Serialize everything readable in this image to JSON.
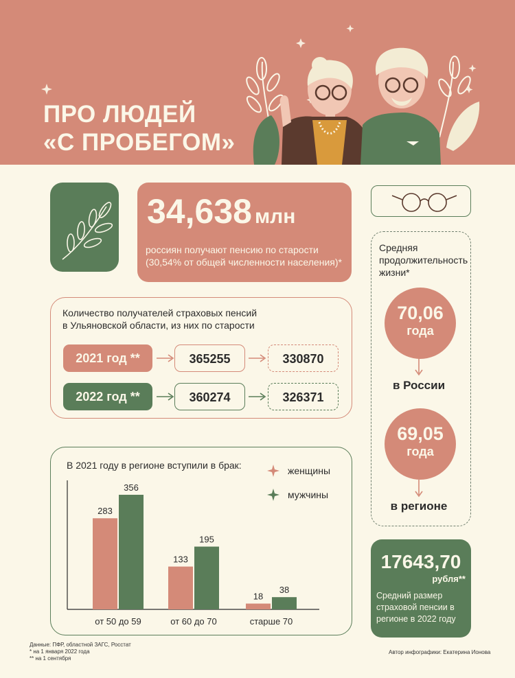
{
  "header": {
    "title_line1": "ПРО ЛЮДЕЙ",
    "title_line2": "«С ПРОБЕГОМ»"
  },
  "colors": {
    "accent_pink": "#d48a78",
    "accent_green": "#5a7d59",
    "background": "#fbf7e8"
  },
  "pensioners": {
    "value": "34,638",
    "unit": "млн",
    "caption_line1": "россиян получают пенсию по старости",
    "caption_line2": "(30,54% от общей численности населения)*"
  },
  "life_expectancy": {
    "title": "Средняя продолжительность жизни*",
    "russia": {
      "value": "70,06",
      "unit": "года",
      "label": "в России"
    },
    "region": {
      "value": "69,05",
      "unit": "года",
      "label": "в регионе"
    }
  },
  "pension": {
    "value": "17643,70",
    "unit": "рубля**",
    "caption": "Средний размер страховой пенсии в регионе в 2022 году"
  },
  "recipients": {
    "title_line1": "Количество получателей страховых пенсий",
    "title_line2": "в Ульяновской области, из них по старости",
    "rows": [
      {
        "year": "2021 год **",
        "total": "365255",
        "old_age": "330870"
      },
      {
        "year": "2022 год **",
        "total": "360274",
        "old_age": "326371"
      }
    ]
  },
  "chart_data": {
    "type": "bar",
    "title": "В 2021 году в регионе вступили в брак:",
    "categories": [
      "от 50 до 59",
      "от 60 до 70",
      "старше 70"
    ],
    "series": [
      {
        "name": "женщины",
        "values": [
          283,
          133,
          18
        ],
        "color": "#d48a78"
      },
      {
        "name": "мужчины",
        "values": [
          356,
          195,
          38
        ],
        "color": "#5a7d59"
      }
    ],
    "legend": "top-right",
    "grid": false
  },
  "footnotes": {
    "source": "Данные: ПФР, областной ЗАГС, Росстат",
    "note1": "* на 1 января 2022 года",
    "note2": "** на 1 сентября",
    "author": "Автор инфографики: Екатерина Ионова"
  }
}
